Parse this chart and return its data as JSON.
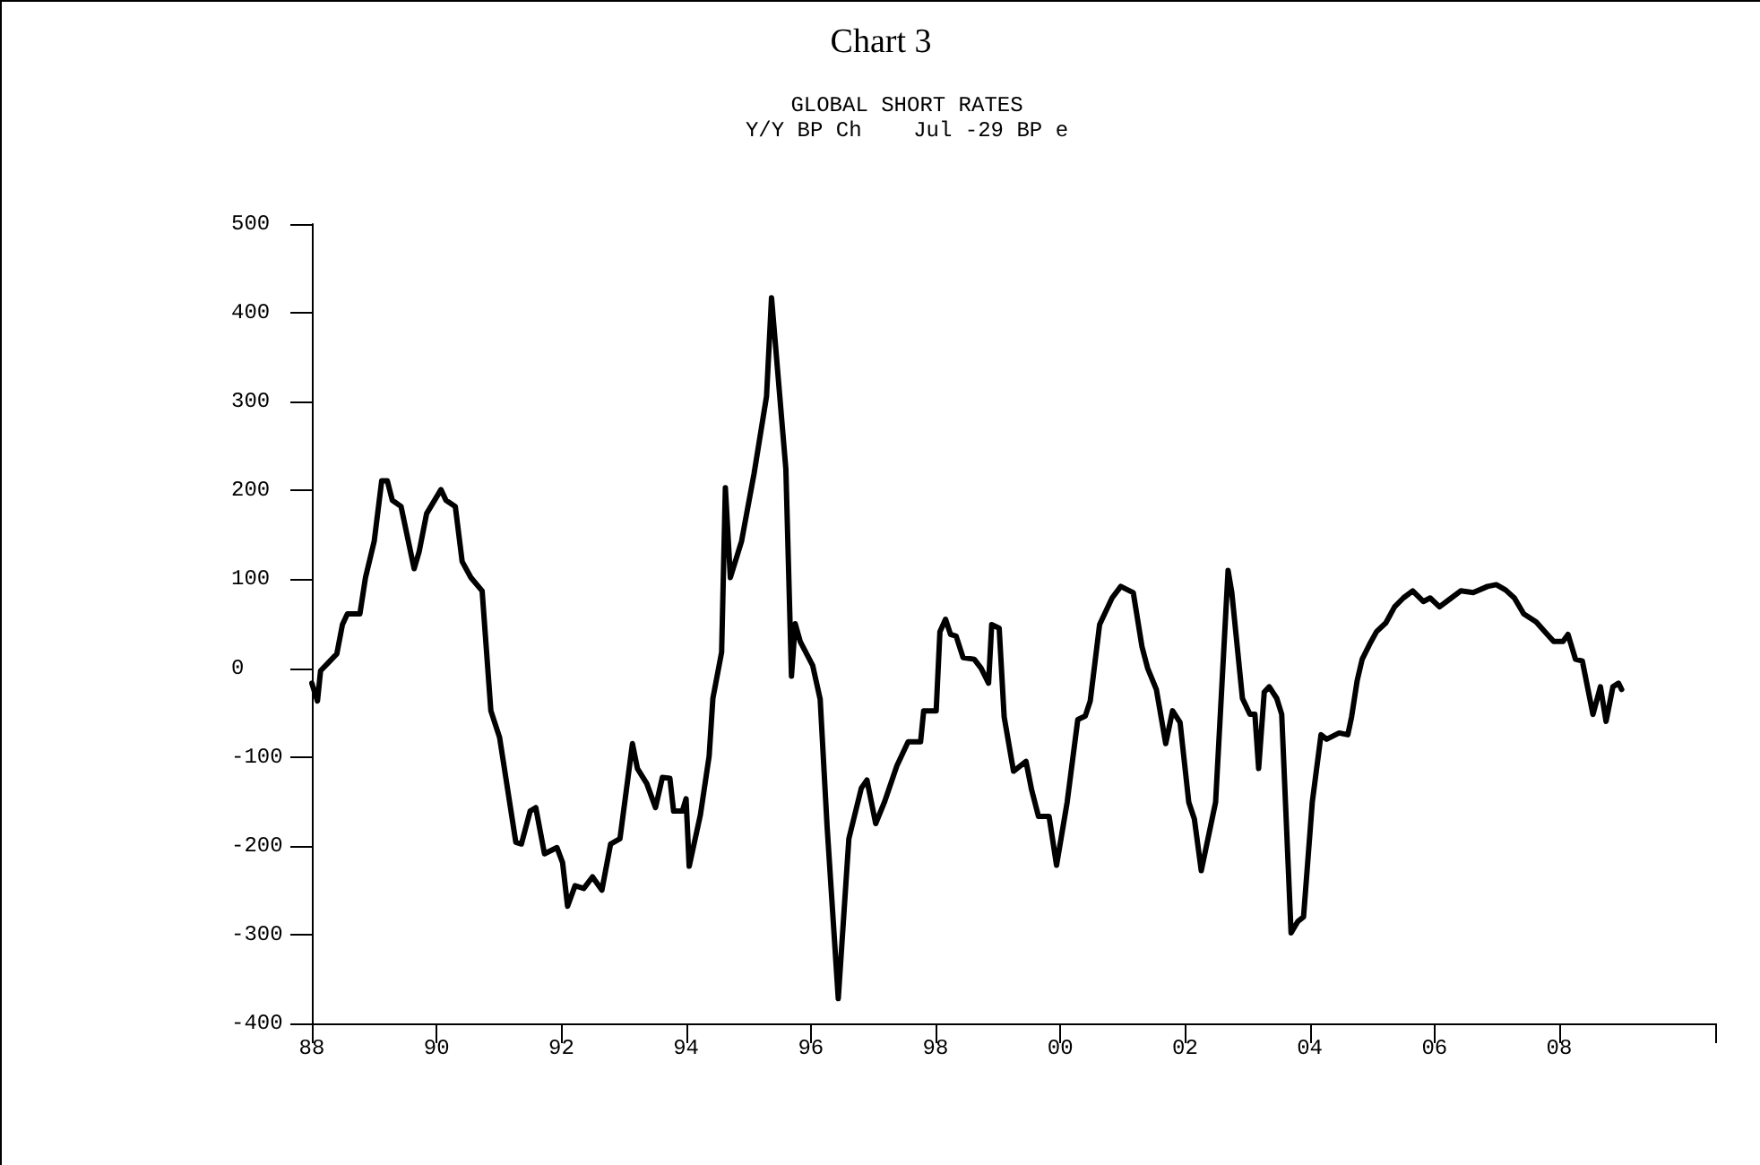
{
  "chart_data": {
    "type": "line",
    "title": "Chart 3",
    "subtitle": "GLOBAL SHORT RATES\nY/Y BP Ch    Jul -29 BP e",
    "x": [
      1988.0,
      1988.09,
      1988.14,
      1988.29,
      1988.4,
      1988.49,
      1988.57,
      1988.77,
      1988.86,
      1989.0,
      1989.12,
      1989.21,
      1989.29,
      1989.43,
      1989.64,
      1989.72,
      1989.84,
      1990.07,
      1990.15,
      1990.3,
      1990.41,
      1990.55,
      1990.73,
      1990.87,
      1991.01,
      1991.27,
      1991.36,
      1991.5,
      1991.59,
      1991.73,
      1991.93,
      1992.02,
      1992.1,
      1992.22,
      1992.36,
      1992.5,
      1992.65,
      1992.79,
      1992.94,
      1993.14,
      1993.22,
      1993.37,
      1993.51,
      1993.62,
      1993.74,
      1993.8,
      1993.94,
      1994.0,
      1994.05,
      1994.23,
      1994.37,
      1994.43,
      1994.57,
      1994.63,
      1994.71,
      1994.89,
      1995.09,
      1995.29,
      1995.37,
      1995.6,
      1995.69,
      1995.75,
      1995.83,
      1996.03,
      1996.15,
      1996.26,
      1996.44,
      1996.61,
      1996.81,
      1996.9,
      1997.04,
      1997.18,
      1997.38,
      1997.56,
      1997.76,
      1997.81,
      1998.01,
      1998.07,
      1998.16,
      1998.24,
      1998.33,
      1998.44,
      1998.62,
      1998.73,
      1998.85,
      1998.9,
      1999.02,
      1999.1,
      1999.25,
      1999.45,
      1999.54,
      1999.65,
      1999.82,
      1999.94,
      2000.11,
      2000.28,
      2000.4,
      2000.48,
      2000.63,
      2000.83,
      2000.97,
      2001.17,
      2001.31,
      2001.4,
      2001.54,
      2001.69,
      2001.8,
      2001.92,
      2002.06,
      2002.15,
      2002.26,
      2002.49,
      2002.69,
      2002.75,
      2002.92,
      2003.04,
      2003.12,
      2003.18,
      2003.27,
      2003.35,
      2003.47,
      2003.55,
      2003.61,
      2003.7,
      2003.81,
      2003.9,
      2004.04,
      2004.18,
      2004.27,
      2004.47,
      2004.61,
      2004.67,
      2004.76,
      2004.84,
      2004.96,
      2005.07,
      2005.22,
      2005.36,
      2005.5,
      2005.65,
      2005.82,
      2005.93,
      2006.08,
      2006.25,
      2006.42,
      2006.62,
      2006.85,
      2006.99,
      2007.14,
      2007.28,
      2007.43,
      2007.63,
      2007.77,
      2007.91,
      2008.06,
      2008.14,
      2008.26,
      2008.37,
      2008.54,
      2008.66,
      2008.75,
      2008.86,
      2008.95,
      2009.0
    ],
    "series": [
      {
        "color": "#000000",
        "values": [
          -17,
          -37,
          -3,
          8,
          16,
          49,
          61,
          61,
          102,
          143,
          211,
          211,
          189,
          182,
          112,
          131,
          174,
          201,
          189,
          182,
          120,
          102,
          87,
          -48,
          -78,
          -196,
          -198,
          -161,
          -157,
          -209,
          -202,
          -219,
          -268,
          -245,
          -248,
          -235,
          -250,
          -198,
          -192,
          -85,
          -113,
          -130,
          -157,
          -123,
          -124,
          -161,
          -161,
          -147,
          -223,
          -165,
          -99,
          -34,
          18,
          203,
          102,
          143,
          219,
          306,
          417,
          224,
          -9,
          50,
          30,
          3,
          -35,
          -177,
          -372,
          -192,
          -135,
          -126,
          -175,
          -151,
          -110,
          -83,
          -83,
          -48,
          -48,
          41,
          55,
          38,
          36,
          12,
          10,
          0,
          -17,
          49,
          45,
          -55,
          -116,
          -105,
          -137,
          -167,
          -167,
          -222,
          -151,
          -58,
          -54,
          -37,
          49,
          79,
          92,
          85,
          24,
          0,
          -24,
          -85,
          -48,
          -61,
          -151,
          -170,
          -228,
          -151,
          110,
          85,
          -34,
          -52,
          -52,
          -113,
          -27,
          -21,
          -34,
          -52,
          -151,
          -298,
          -285,
          -280,
          -151,
          -75,
          -80,
          -73,
          -75,
          -55,
          -14,
          10,
          27,
          41,
          51,
          69,
          79,
          87,
          75,
          79,
          69,
          78,
          87,
          85,
          92,
          94,
          88,
          79,
          61,
          52,
          41,
          30,
          30,
          38,
          10,
          8,
          -52,
          -21,
          -60,
          -21,
          -17,
          -24
        ]
      }
    ],
    "xlim": [
      1988,
      2010.5
    ],
    "xticks": [
      {
        "value": 1988,
        "label": "88"
      },
      {
        "value": 1990,
        "label": "90"
      },
      {
        "value": 1992,
        "label": "92"
      },
      {
        "value": 1994,
        "label": "94"
      },
      {
        "value": 1996,
        "label": "96"
      },
      {
        "value": 1998,
        "label": "98"
      },
      {
        "value": 2000,
        "label": "00"
      },
      {
        "value": 2002,
        "label": "02"
      },
      {
        "value": 2004,
        "label": "04"
      },
      {
        "value": 2006,
        "label": "06"
      },
      {
        "value": 2008,
        "label": "08"
      },
      {
        "value": 2010.5,
        "label": null
      }
    ],
    "ylim": [
      -400,
      500
    ],
    "yticks": [
      -400,
      -300,
      -200,
      -100,
      0,
      100,
      200,
      300,
      400,
      500
    ],
    "marker": "none",
    "line_style": "solid"
  }
}
